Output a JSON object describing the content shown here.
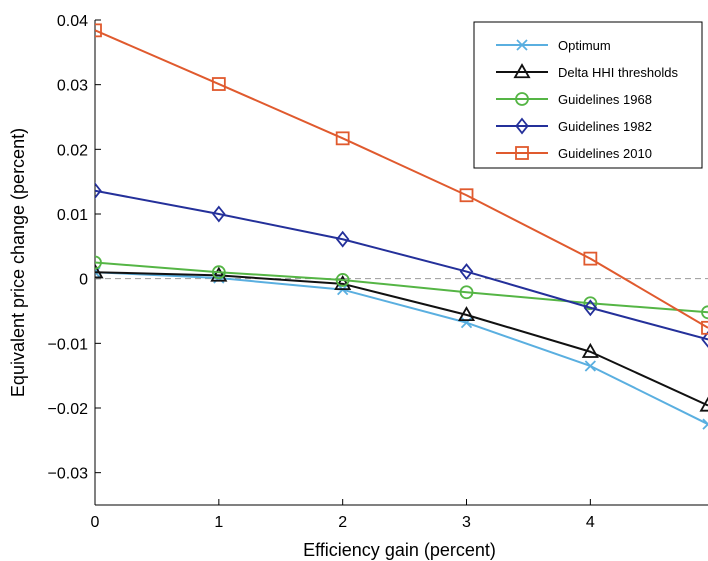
{
  "chart_data": {
    "type": "line",
    "xlabel": "Efficiency gain (percent)",
    "ylabel": "Equivalent price change (percent)",
    "xlim": [
      0,
      4.95
    ],
    "ylim": [
      -0.035,
      0.04
    ],
    "xticks": [
      0,
      1,
      2,
      3,
      4
    ],
    "xtick_labels": [
      "0",
      "1",
      "2",
      "3",
      "4"
    ],
    "yticks": [
      -0.03,
      -0.02,
      -0.01,
      0,
      0.01,
      0.02,
      0.03,
      0.04
    ],
    "ytick_labels": [
      "−0.03",
      "−0.02",
      "−0.01",
      "0",
      "0.01",
      "0.02",
      "0.03",
      "0.04"
    ],
    "zero_line": "dashed",
    "grid": false,
    "legend_position": "top-right",
    "series": [
      {
        "name": "Optimum",
        "color": "#5aafe0",
        "marker": "x",
        "x": [
          0,
          1,
          2,
          3,
          4,
          4.95
        ],
        "y": [
          0.001,
          0.0001,
          -0.0017,
          -0.0068,
          -0.0135,
          -0.0225
        ]
      },
      {
        "name": "Delta HHI thresholds",
        "color": "#111111",
        "marker": "triangle",
        "x": [
          0,
          1,
          2,
          3,
          4,
          4.95
        ],
        "y": [
          0.001,
          0.0005,
          -0.0008,
          -0.0056,
          -0.0113,
          -0.0196
        ]
      },
      {
        "name": "Guidelines 1968",
        "color": "#55b545",
        "marker": "circle",
        "x": [
          0,
          1,
          2,
          3,
          4,
          4.95
        ],
        "y": [
          0.0025,
          0.001,
          -0.0002,
          -0.0021,
          -0.0038,
          -0.0052
        ]
      },
      {
        "name": "Guidelines 1982",
        "color": "#24309a",
        "marker": "diamond",
        "x": [
          0,
          1,
          2,
          3,
          4,
          4.95
        ],
        "y": [
          0.0136,
          0.01,
          0.0061,
          0.0011,
          -0.0045,
          -0.0094
        ]
      },
      {
        "name": "Guidelines 2010",
        "color": "#e05a2e",
        "marker": "square",
        "x": [
          0,
          1,
          2,
          3,
          4,
          4.95
        ],
        "y": [
          0.0384,
          0.0301,
          0.0217,
          0.0129,
          0.0031,
          -0.0076
        ]
      }
    ]
  }
}
